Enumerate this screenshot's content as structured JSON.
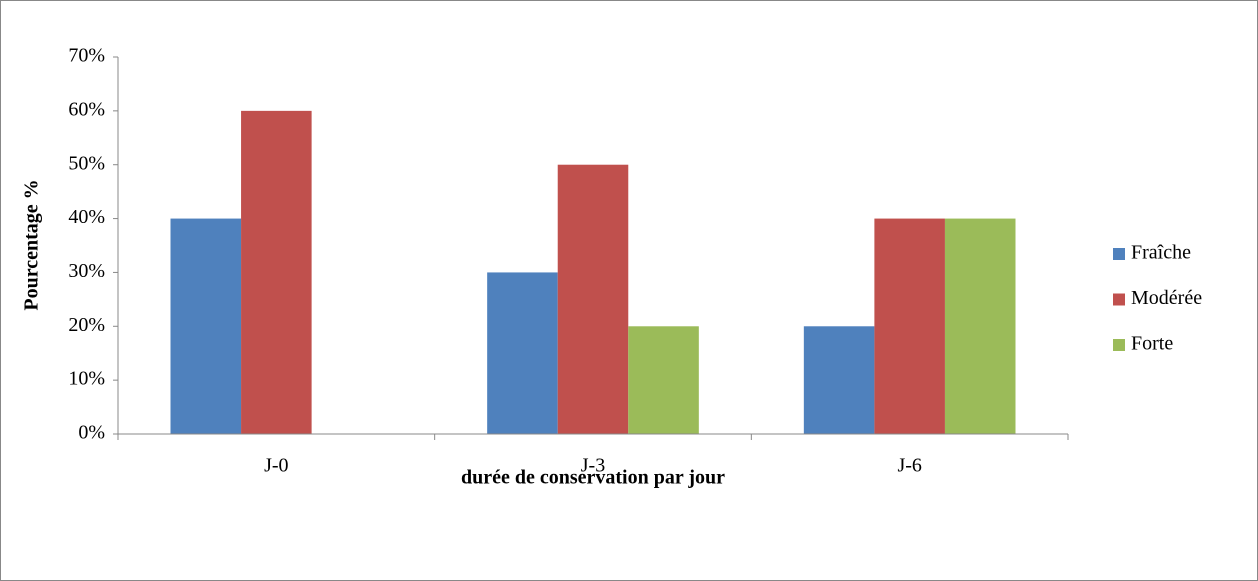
{
  "chart_data": {
    "type": "bar",
    "categories": [
      "J-0",
      "J-3",
      "J-6"
    ],
    "series": [
      {
        "name": "Fraîche",
        "color": "#4f81bd",
        "values": [
          40,
          30,
          20
        ]
      },
      {
        "name": "Modérée",
        "color": "#c0504d",
        "values": [
          60,
          50,
          40
        ]
      },
      {
        "name": "Forte",
        "color": "#9bbb59",
        "values": [
          0,
          20,
          40
        ]
      }
    ],
    "y_label": "Pourcentage %",
    "x_label": "durée de conservation par jour",
    "ylim": [
      0,
      70
    ],
    "yticks": [
      {
        "value": 0,
        "label": "0%"
      },
      {
        "value": 10,
        "label": "10%"
      },
      {
        "value": 20,
        "label": "20%"
      },
      {
        "value": 30,
        "label": "30%"
      },
      {
        "value": 40,
        "label": "40%"
      },
      {
        "value": 50,
        "label": "50%"
      },
      {
        "value": 60,
        "label": "60%"
      },
      {
        "value": 70,
        "label": "70%"
      }
    ],
    "grid": false,
    "legend": "right"
  }
}
